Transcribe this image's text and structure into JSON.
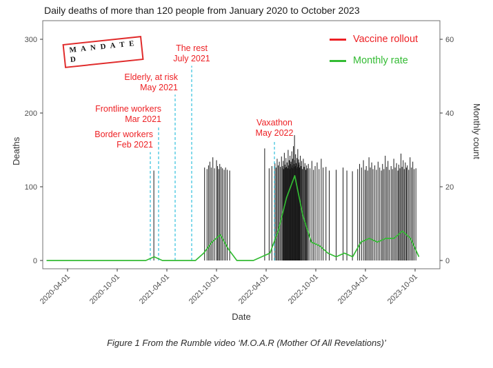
{
  "chart_data": {
    "type": "bar",
    "title": "Daily deaths of more than 120 people from January 2020 to October 2023",
    "xlabel": "Date",
    "ylabel_left": "Deaths",
    "ylabel_right": "Monthly count",
    "x_domain": [
      "2020-01-01",
      "2024-01-01"
    ],
    "x_ticks": [
      "2020-04-01",
      "2020-10-01",
      "2021-04-01",
      "2021-10-01",
      "2022-04-01",
      "2022-10-01",
      "2023-04-01",
      "2023-10-01"
    ],
    "y_left_ticks": [
      0,
      100,
      200,
      300
    ],
    "y_right_ticks": [
      0,
      20,
      40,
      60
    ],
    "grid": false,
    "legend_position": "top-right-inside",
    "bars_color": "#1a1a1a",
    "vline_color": "#4ec9e1",
    "annotation_color": "#ed2024",
    "legend": [
      {
        "label": "Vaccine rollout",
        "color": "#ed2024"
      },
      {
        "label": "Monthly rate",
        "color": "#33bb33"
      }
    ],
    "stamp": {
      "line1": "M A N D A T E",
      "line2": "D",
      "border_color": "#e02b2b"
    },
    "caption": "Figure 1 From the Rumble video ‘M.O.A.R (Mother Of All Revelations)’",
    "annotations": [
      {
        "id": "border-workers",
        "label": "Border workers\nFeb 2021",
        "date": "2021-02-01",
        "line_top_deaths": 147,
        "align": "right"
      },
      {
        "id": "frontline-workers",
        "label": "Frontline workers\nMar 2021",
        "date": "2021-03-01",
        "line_top_deaths": 182,
        "align": "right"
      },
      {
        "id": "elderly-at-risk",
        "label": "Elderly, at risk\nMay 2021",
        "date": "2021-05-01",
        "line_top_deaths": 225,
        "align": "right"
      },
      {
        "id": "the-rest",
        "label": "The rest\nJuly 2021",
        "date": "2021-07-01",
        "line_top_deaths": 264,
        "align": "center"
      },
      {
        "id": "vaxathon",
        "label": "Vaxathon\nMay 2022",
        "date": "2022-05-01",
        "line_top_deaths": 163,
        "align": "center"
      }
    ],
    "monthly_rate": {
      "name": "Monthly rate",
      "color": "#33bb33",
      "points": [
        [
          "2020-01",
          0
        ],
        [
          "2020-02",
          0
        ],
        [
          "2020-03",
          0
        ],
        [
          "2020-04",
          0
        ],
        [
          "2020-05",
          0
        ],
        [
          "2020-06",
          0
        ],
        [
          "2020-07",
          0
        ],
        [
          "2020-08",
          0
        ],
        [
          "2020-09",
          0
        ],
        [
          "2020-10",
          0
        ],
        [
          "2020-11",
          0
        ],
        [
          "2020-12",
          0
        ],
        [
          "2021-01",
          0
        ],
        [
          "2021-02",
          1
        ],
        [
          "2021-03",
          0
        ],
        [
          "2021-04",
          0
        ],
        [
          "2021-05",
          0
        ],
        [
          "2021-06",
          0
        ],
        [
          "2021-07",
          0
        ],
        [
          "2021-08",
          2
        ],
        [
          "2021-09",
          5
        ],
        [
          "2021-10",
          7
        ],
        [
          "2021-11",
          3
        ],
        [
          "2021-12",
          0
        ],
        [
          "2022-01",
          0
        ],
        [
          "2022-02",
          0
        ],
        [
          "2022-03",
          1
        ],
        [
          "2022-04",
          2
        ],
        [
          "2022-05",
          8
        ],
        [
          "2022-06",
          17
        ],
        [
          "2022-07",
          23
        ],
        [
          "2022-08",
          12
        ],
        [
          "2022-09",
          5
        ],
        [
          "2022-10",
          4
        ],
        [
          "2022-11",
          2
        ],
        [
          "2022-12",
          1
        ],
        [
          "2023-01",
          2
        ],
        [
          "2023-02",
          1
        ],
        [
          "2023-03",
          5
        ],
        [
          "2023-04",
          6
        ],
        [
          "2023-05",
          5
        ],
        [
          "2023-06",
          6
        ],
        [
          "2023-07",
          6
        ],
        [
          "2023-08",
          8
        ],
        [
          "2023-09",
          6
        ],
        [
          "2023-10",
          1
        ]
      ]
    },
    "bars": [
      [
        "2021-02-14",
        122
      ],
      [
        "2021-08-18",
        126
      ],
      [
        "2021-08-27",
        124
      ],
      [
        "2021-09-02",
        129
      ],
      [
        "2021-09-07",
        134
      ],
      [
        "2021-09-12",
        126
      ],
      [
        "2021-09-18",
        140
      ],
      [
        "2021-09-24",
        125
      ],
      [
        "2021-10-01",
        136
      ],
      [
        "2021-10-05",
        128
      ],
      [
        "2021-10-09",
        124
      ],
      [
        "2021-10-13",
        131
      ],
      [
        "2021-10-18",
        127
      ],
      [
        "2021-10-23",
        125
      ],
      [
        "2021-10-29",
        123
      ],
      [
        "2021-11-04",
        126
      ],
      [
        "2021-11-10",
        123
      ],
      [
        "2021-11-19",
        122
      ],
      [
        "2022-03-26",
        152
      ],
      [
        "2022-04-12",
        125
      ],
      [
        "2022-04-22",
        128
      ],
      [
        "2022-05-03",
        132
      ],
      [
        "2022-05-07",
        126
      ],
      [
        "2022-05-11",
        138
      ],
      [
        "2022-05-15",
        129
      ],
      [
        "2022-05-19",
        134
      ],
      [
        "2022-05-23",
        127
      ],
      [
        "2022-05-27",
        141
      ],
      [
        "2022-05-31",
        125
      ],
      [
        "2022-06-01",
        128
      ],
      [
        "2022-06-03",
        135
      ],
      [
        "2022-06-05",
        124
      ],
      [
        "2022-06-07",
        146
      ],
      [
        "2022-06-09",
        130
      ],
      [
        "2022-06-11",
        126
      ],
      [
        "2022-06-13",
        139
      ],
      [
        "2022-06-15",
        127
      ],
      [
        "2022-06-17",
        133
      ],
      [
        "2022-06-19",
        125
      ],
      [
        "2022-06-21",
        150
      ],
      [
        "2022-06-23",
        129
      ],
      [
        "2022-06-25",
        136
      ],
      [
        "2022-06-27",
        124
      ],
      [
        "2022-06-28",
        142
      ],
      [
        "2022-06-29",
        127
      ],
      [
        "2022-06-30",
        131
      ],
      [
        "2022-07-01",
        134
      ],
      [
        "2022-07-02",
        126
      ],
      [
        "2022-07-04",
        148
      ],
      [
        "2022-07-05",
        129
      ],
      [
        "2022-07-07",
        138
      ],
      [
        "2022-07-08",
        125
      ],
      [
        "2022-07-10",
        155
      ],
      [
        "2022-07-11",
        131
      ],
      [
        "2022-07-13",
        127
      ],
      [
        "2022-07-14",
        170
      ],
      [
        "2022-07-15",
        136
      ],
      [
        "2022-07-17",
        128
      ],
      [
        "2022-07-18",
        144
      ],
      [
        "2022-07-20",
        132
      ],
      [
        "2022-07-21",
        125
      ],
      [
        "2022-07-23",
        139
      ],
      [
        "2022-07-24",
        127
      ],
      [
        "2022-07-26",
        151
      ],
      [
        "2022-07-27",
        130
      ],
      [
        "2022-07-28",
        124
      ],
      [
        "2022-07-29",
        137
      ],
      [
        "2022-07-30",
        128
      ],
      [
        "2022-07-31",
        133
      ],
      [
        "2022-08-01",
        130
      ],
      [
        "2022-08-03",
        126
      ],
      [
        "2022-08-05",
        142
      ],
      [
        "2022-08-08",
        128
      ],
      [
        "2022-08-10",
        135
      ],
      [
        "2022-08-13",
        124
      ],
      [
        "2022-08-16",
        138
      ],
      [
        "2022-08-19",
        127
      ],
      [
        "2022-08-22",
        132
      ],
      [
        "2022-08-25",
        123
      ],
      [
        "2022-08-28",
        129
      ],
      [
        "2022-08-31",
        125
      ],
      [
        "2022-09-04",
        131
      ],
      [
        "2022-09-10",
        125
      ],
      [
        "2022-09-17",
        135
      ],
      [
        "2022-09-23",
        123
      ],
      [
        "2022-09-29",
        128
      ],
      [
        "2022-10-06",
        133
      ],
      [
        "2022-10-13",
        124
      ],
      [
        "2022-10-21",
        138
      ],
      [
        "2022-10-28",
        126
      ],
      [
        "2022-11-08",
        127
      ],
      [
        "2022-11-20",
        122
      ],
      [
        "2022-12-15",
        123
      ],
      [
        "2023-01-10",
        126
      ],
      [
        "2023-01-24",
        122
      ],
      [
        "2023-02-14",
        121
      ],
      [
        "2023-03-03",
        124
      ],
      [
        "2023-03-10",
        131
      ],
      [
        "2023-03-17",
        126
      ],
      [
        "2023-03-24",
        136
      ],
      [
        "2023-03-30",
        123
      ],
      [
        "2023-04-04",
        128
      ],
      [
        "2023-04-09",
        122
      ],
      [
        "2023-04-14",
        140
      ],
      [
        "2023-04-19",
        126
      ],
      [
        "2023-04-24",
        133
      ],
      [
        "2023-04-29",
        124
      ],
      [
        "2023-05-05",
        129
      ],
      [
        "2023-05-11",
        123
      ],
      [
        "2023-05-17",
        134
      ],
      [
        "2023-05-23",
        126
      ],
      [
        "2023-05-29",
        122
      ],
      [
        "2023-06-03",
        131
      ],
      [
        "2023-06-08",
        124
      ],
      [
        "2023-06-13",
        142
      ],
      [
        "2023-06-18",
        127
      ],
      [
        "2023-06-23",
        135
      ],
      [
        "2023-06-28",
        123
      ],
      [
        "2023-07-04",
        128
      ],
      [
        "2023-07-09",
        124
      ],
      [
        "2023-07-14",
        138
      ],
      [
        "2023-07-19",
        126
      ],
      [
        "2023-07-24",
        132
      ],
      [
        "2023-07-29",
        122
      ],
      [
        "2023-08-02",
        130
      ],
      [
        "2023-08-06",
        125
      ],
      [
        "2023-08-10",
        145
      ],
      [
        "2023-08-14",
        127
      ],
      [
        "2023-08-18",
        136
      ],
      [
        "2023-08-22",
        124
      ],
      [
        "2023-08-26",
        133
      ],
      [
        "2023-08-30",
        126
      ],
      [
        "2023-09-03",
        129
      ],
      [
        "2023-09-08",
        123
      ],
      [
        "2023-09-13",
        140
      ],
      [
        "2023-09-18",
        126
      ],
      [
        "2023-09-23",
        134
      ],
      [
        "2023-09-28",
        124
      ],
      [
        "2023-10-04",
        125
      ]
    ]
  }
}
